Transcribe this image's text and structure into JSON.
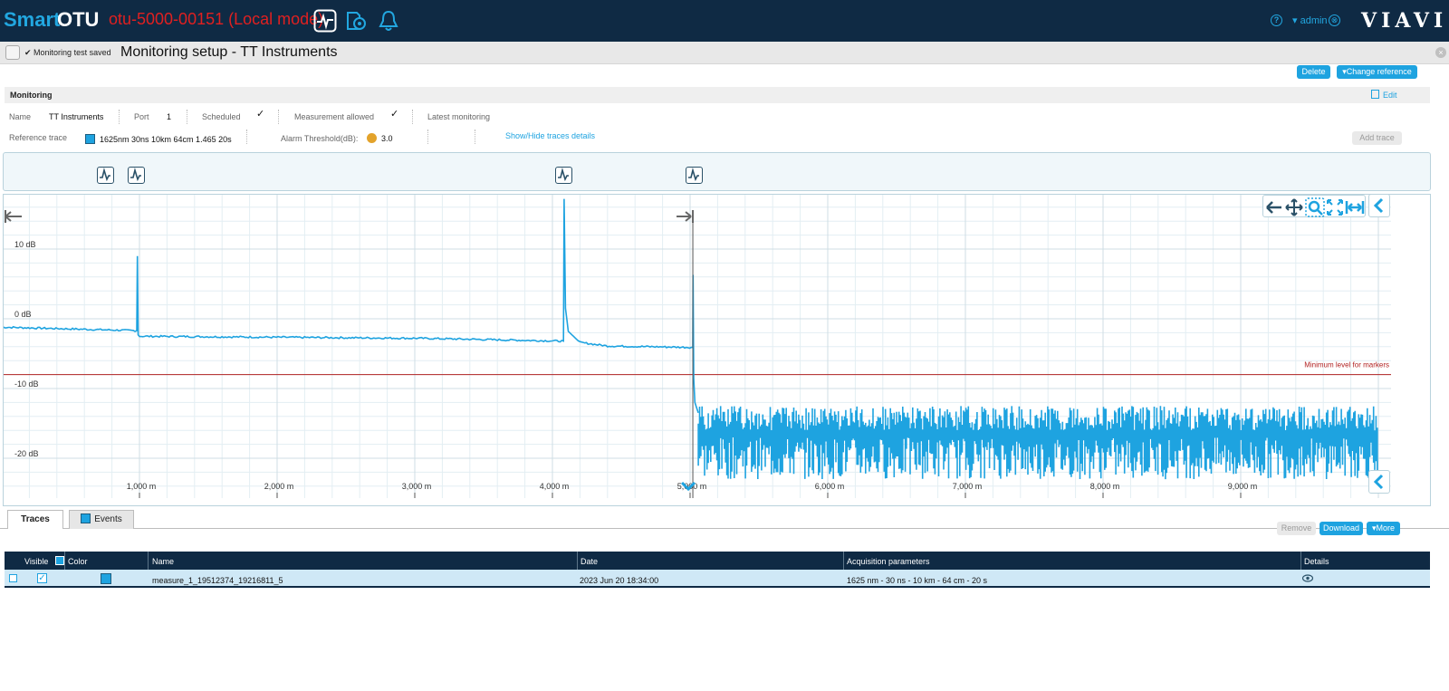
{
  "app": {
    "brand_smart": "Smart",
    "brand_otu": "OTU",
    "device_name": "otu-5000-00151 (Local mode)",
    "help_label": "?",
    "user": "▾ admin",
    "logout_label": "⊗",
    "vendor_logo": "VIAVI"
  },
  "titlebar": {
    "saved_message": "✔ Monitoring test saved",
    "page_title": "Monitoring setup - TT Instruments",
    "close_label": "×"
  },
  "actions": {
    "delete": "Delete",
    "change_reference": "▾Change reference",
    "add_trace": "Add trace"
  },
  "monitoring": {
    "section_title": "Monitoring",
    "edit": "Edit",
    "name_label": "Name",
    "name_value": "TT Instruments",
    "port_label": "Port",
    "port_value": "1",
    "scheduled_label": "Scheduled",
    "measurement_allowed_label": "Measurement allowed",
    "latest_monitoring_label": "Latest monitoring",
    "check_mark": "✓",
    "reference_trace_label": "Reference trace",
    "reference_trace_value": "1625nm 30ns 10km 64cm 1.465 20s",
    "alarm_threshold_label": "Alarm Threshold(dB):",
    "alarm_threshold_value": "3.0",
    "show_hide_traces": "Show/Hide traces details"
  },
  "chart_data": {
    "type": "line",
    "y_unit": "dB",
    "y_tick_labels": [
      "10 dB",
      "0 dB",
      "-10 dB",
      "-20 dB"
    ],
    "x_tick_labels": [
      "1,000 m",
      "2,000 m",
      "3,000 m",
      "4,000 m",
      "5,000 m",
      "6,000 m",
      "7,000 m",
      "8,000 m",
      "9,000 m"
    ],
    "ylim": [
      -23,
      15.5
    ],
    "xlim": [
      0,
      10000
    ],
    "threshold": {
      "label": "Minimum level for markers",
      "y": -8,
      "color": "#b22222"
    },
    "trace_color": "#1ea3e0",
    "series": [
      {
        "x": [
          0,
          980,
          985,
          990,
          1000,
          3050,
          4080,
          4085,
          4095,
          4115,
          4200,
          4400,
          5020,
          5022,
          5026,
          5035,
          5060
        ],
        "y": [
          -1.2,
          -1.7,
          9.0,
          -2.3,
          -2.5,
          -2.8,
          -3.2,
          17.2,
          1.5,
          -1.8,
          -3.4,
          -3.9,
          -4.1,
          6.3,
          -8.5,
          -12.0,
          -13.5
        ]
      }
    ],
    "noise_floor": {
      "x_start": 5060,
      "x_end": 10000,
      "y_min": -23,
      "y_max": -12.5
    },
    "markers_x": [
      760,
      990,
      4090,
      5040
    ],
    "grid": true
  },
  "tabs": [
    {
      "label": "Traces"
    },
    {
      "label": "Events"
    }
  ],
  "table_actions": {
    "remove": "Remove",
    "download": "Download",
    "more": "▾More"
  },
  "table": {
    "headers": {
      "visible": "Visible",
      "color": "Color",
      "name": "Name",
      "date": "Date",
      "acquisition": "Acquisition parameters",
      "details": "Details"
    },
    "rows": [
      {
        "name": "measure_1_19512374_19216811_5",
        "date": "2023 Jun 20 18:34:00",
        "acquisition": "1625 nm - 30 ns - 10 km - 64 cm - 20 s",
        "color": "#1ea3e0"
      }
    ]
  }
}
